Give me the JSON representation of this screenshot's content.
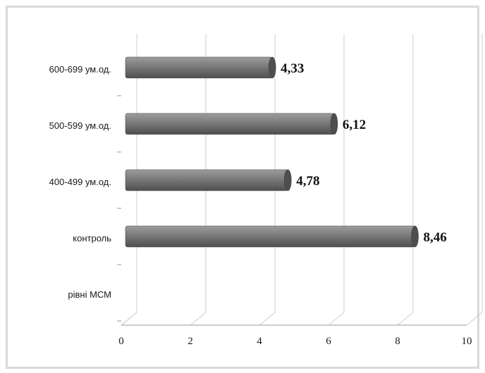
{
  "chart_data": {
    "type": "bar",
    "orientation": "horizontal",
    "three_d": true,
    "categories": [
      "600-699 ум.од.",
      "500-599 ум.од.",
      "400-499 ум.од.",
      "контроль",
      "рівні МСМ"
    ],
    "values": [
      4.33,
      6.12,
      4.78,
      8.46,
      null
    ],
    "data_labels": [
      "4,33",
      "6,12",
      "4,78",
      "8,46",
      ""
    ],
    "x_ticks": [
      "0",
      "2",
      "4",
      "6",
      "8",
      "10"
    ],
    "xlim": [
      0,
      10
    ],
    "grid": true,
    "legend": "none",
    "title": "",
    "xlabel": "",
    "ylabel": "",
    "colors": {
      "bar": "#7a7a7a",
      "bar_light": "#9c9c9c",
      "bar_dark": "#4e4e4e",
      "grid": "#cfcfcf",
      "frame": "#d9d9d9"
    }
  }
}
